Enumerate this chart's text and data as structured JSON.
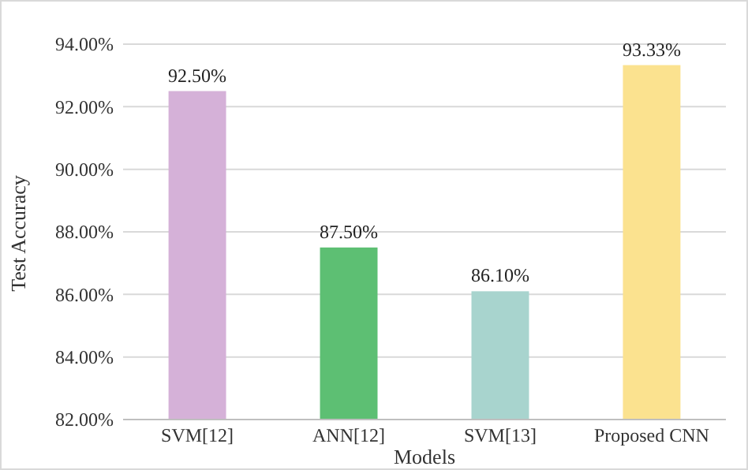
{
  "chart_data": {
    "type": "bar",
    "xlabel": "Models",
    "ylabel": "Test Accuracy",
    "categories": [
      "SVM[12]",
      "ANN[12]",
      "SVM[13]",
      "Proposed CNN"
    ],
    "values": [
      92.5,
      87.5,
      86.1,
      93.33
    ],
    "colors": [
      "#d5b1d8",
      "#5dbf73",
      "#a8d4ce",
      "#fbe28f"
    ],
    "value_labels": [
      "92.50%",
      "87.50%",
      "86.10%",
      "93.33%"
    ],
    "ylim": [
      82,
      94
    ],
    "yticks": [
      {
        "value": 82,
        "label": "82.00%"
      },
      {
        "value": 84,
        "label": "84.00%"
      },
      {
        "value": 86,
        "label": "86.00%"
      },
      {
        "value": 88,
        "label": "88.00%"
      },
      {
        "value": 90,
        "label": "90.00%"
      },
      {
        "value": 92,
        "label": "92.00%"
      },
      {
        "value": 94,
        "label": "94.00%"
      }
    ],
    "grid": "y"
  }
}
